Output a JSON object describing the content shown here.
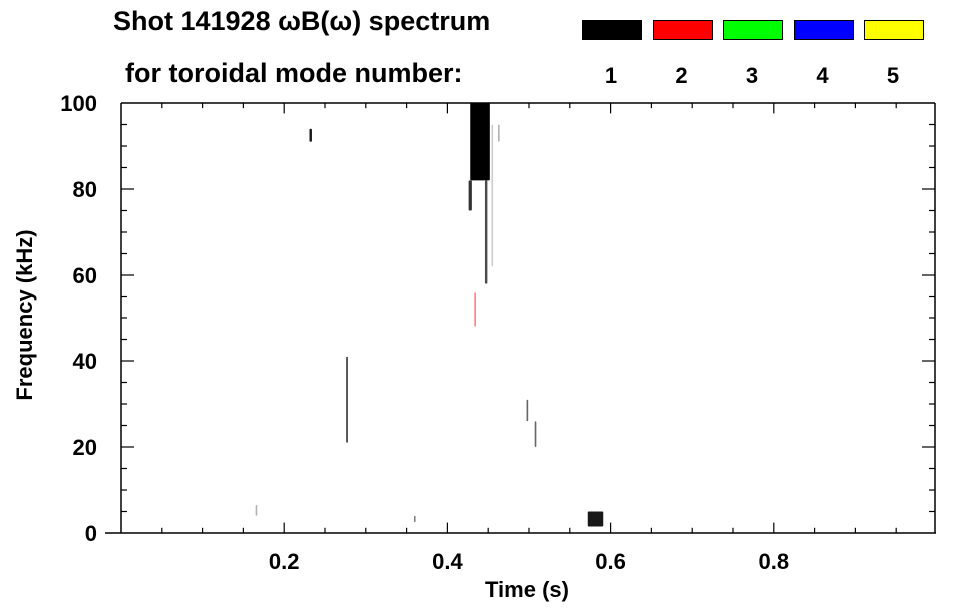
{
  "chart_data": {
    "type": "heatmap",
    "title_line1": "Shot 141928 ωB(ω) spectrum",
    "title_line2": "for toroidal mode number:",
    "xlabel": "Time (s)",
    "ylabel": "Frequency (kHz)",
    "xlim": [
      0,
      1.0
    ],
    "ylim": [
      0,
      100
    ],
    "xticks": [
      {
        "v": 0.2,
        "label": "0.2"
      },
      {
        "v": 0.4,
        "label": "0.4"
      },
      {
        "v": 0.6,
        "label": "0.6"
      },
      {
        "v": 0.8,
        "label": "0.8"
      }
    ],
    "yticks": [
      {
        "v": 0,
        "label": "0"
      },
      {
        "v": 20,
        "label": "20"
      },
      {
        "v": 40,
        "label": "40"
      },
      {
        "v": 60,
        "label": "60"
      },
      {
        "v": 80,
        "label": "80"
      },
      {
        "v": 100,
        "label": "100"
      }
    ],
    "legend": [
      {
        "mode": "1",
        "color": "#000000"
      },
      {
        "mode": "2",
        "color": "#ff0000"
      },
      {
        "mode": "3",
        "color": "#00ff00"
      },
      {
        "mode": "4",
        "color": "#0000ff"
      },
      {
        "mode": "5",
        "color": "#ffff00"
      }
    ],
    "features": [
      {
        "t0": 0.231,
        "t1": 0.234,
        "f0": 91,
        "f1": 94,
        "mode": 1,
        "intensity": 0.9
      },
      {
        "t0": 0.165,
        "t1": 0.167,
        "f0": 4,
        "f1": 6.5,
        "mode": 1,
        "intensity": 0.3
      },
      {
        "t0": 0.276,
        "t1": 0.278,
        "f0": 21,
        "f1": 41,
        "mode": 1,
        "intensity": 0.8
      },
      {
        "t0": 0.359,
        "t1": 0.361,
        "f0": 2.5,
        "f1": 4,
        "mode": 1,
        "intensity": 0.5
      },
      {
        "t0": 0.428,
        "t1": 0.452,
        "f0": 82,
        "f1": 100,
        "mode": 1,
        "intensity": 1.0
      },
      {
        "t0": 0.426,
        "t1": 0.43,
        "f0": 75,
        "f1": 82,
        "mode": 1,
        "intensity": 0.8
      },
      {
        "t0": 0.446,
        "t1": 0.449,
        "f0": 58,
        "f1": 82,
        "mode": 1,
        "intensity": 0.7
      },
      {
        "t0": 0.454,
        "t1": 0.456,
        "f0": 62,
        "f1": 95,
        "mode": 1,
        "intensity": 0.2
      },
      {
        "t0": 0.462,
        "t1": 0.464,
        "f0": 91,
        "f1": 95,
        "mode": 1,
        "intensity": 0.3
      },
      {
        "t0": 0.433,
        "t1": 0.435,
        "f0": 48,
        "f1": 56,
        "mode": 2,
        "intensity": 0.5
      },
      {
        "t0": 0.497,
        "t1": 0.499,
        "f0": 26,
        "f1": 31,
        "mode": 1,
        "intensity": 0.6
      },
      {
        "t0": 0.507,
        "t1": 0.509,
        "f0": 20,
        "f1": 26,
        "mode": 1,
        "intensity": 0.6
      },
      {
        "t0": 0.572,
        "t1": 0.591,
        "f0": 1.5,
        "f1": 5,
        "mode": 1,
        "intensity": 0.9
      }
    ]
  }
}
